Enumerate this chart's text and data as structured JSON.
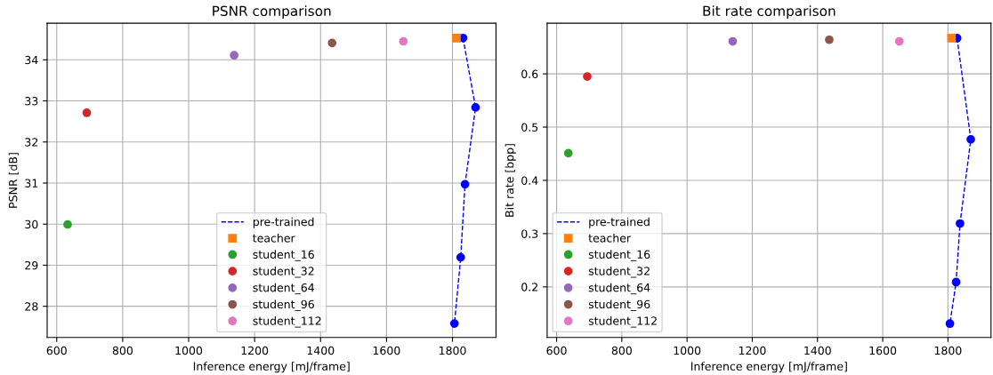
{
  "chart_data": [
    {
      "type": "scatter",
      "title": "PSNR comparison",
      "xlabel": "Inference energy [mJ/frame]",
      "ylabel": "PSNR [dB]",
      "xlim": [
        571,
        1932
      ],
      "xticks": [
        600,
        800,
        1000,
        1200,
        1400,
        1600,
        1800
      ],
      "ylim": [
        27.24,
        34.89
      ],
      "yticks": [
        28,
        29,
        30,
        31,
        32,
        33,
        34
      ],
      "grid": true,
      "legend": "bottom",
      "series": [
        {
          "name": "pre-trained",
          "type": "line",
          "color": "#0000ff",
          "marker": "circle",
          "line_style": "dashed",
          "x": [
            1832,
            1870,
            1838,
            1825,
            1806
          ],
          "values": [
            34.53,
            32.84,
            30.97,
            29.19,
            27.58
          ]
        },
        {
          "name": "teacher",
          "color": "#ff7f0e",
          "marker": "square",
          "x": [
            1812
          ],
          "values": [
            34.53
          ]
        },
        {
          "name": "student_16",
          "color": "#2ca02c",
          "marker": "circle",
          "x": [
            633
          ],
          "values": [
            29.99
          ]
        },
        {
          "name": "student_32",
          "color": "#d62728",
          "marker": "circle",
          "x": [
            691
          ],
          "values": [
            32.71
          ]
        },
        {
          "name": "student_64",
          "color": "#9467bd",
          "marker": "circle",
          "x": [
            1138
          ],
          "values": [
            34.11
          ]
        },
        {
          "name": "student_96",
          "color": "#8c564b",
          "marker": "circle",
          "x": [
            1435
          ],
          "values": [
            34.41
          ]
        },
        {
          "name": "student_112",
          "color": "#e377c2",
          "marker": "circle",
          "x": [
            1651
          ],
          "values": [
            34.45
          ]
        }
      ]
    },
    {
      "type": "scatter",
      "title": "Bit rate comparison",
      "xlabel": "Inference energy [mJ/frame]",
      "ylabel": "Bit rate [bpp]",
      "xlim": [
        571,
        1932
      ],
      "xticks": [
        600,
        800,
        1000,
        1200,
        1400,
        1600,
        1800
      ],
      "ylim": [
        0.105,
        0.695
      ],
      "yticks": [
        0.2,
        0.3,
        0.4,
        0.5,
        0.6
      ],
      "grid": true,
      "legend": "bottom left",
      "series": [
        {
          "name": "pre-trained",
          "type": "line",
          "color": "#0000ff",
          "marker": "circle",
          "line_style": "dashed",
          "x": [
            1828,
            1870,
            1837,
            1825,
            1806
          ],
          "values": [
            0.667,
            0.477,
            0.319,
            0.209,
            0.131
          ]
        },
        {
          "name": "teacher",
          "color": "#ff7f0e",
          "marker": "square",
          "x": [
            1811
          ],
          "values": [
            0.667
          ]
        },
        {
          "name": "student_16",
          "color": "#2ca02c",
          "marker": "circle",
          "x": [
            636
          ],
          "values": [
            0.451
          ]
        },
        {
          "name": "student_32",
          "color": "#d62728",
          "marker": "circle",
          "x": [
            694
          ],
          "values": [
            0.595
          ]
        },
        {
          "name": "student_64",
          "color": "#9467bd",
          "marker": "circle",
          "x": [
            1140
          ],
          "values": [
            0.661
          ]
        },
        {
          "name": "student_96",
          "color": "#8c564b",
          "marker": "circle",
          "x": [
            1436
          ],
          "values": [
            0.664
          ]
        },
        {
          "name": "student_112",
          "color": "#e377c2",
          "marker": "circle",
          "x": [
            1651
          ],
          "values": [
            0.661
          ]
        }
      ]
    }
  ]
}
